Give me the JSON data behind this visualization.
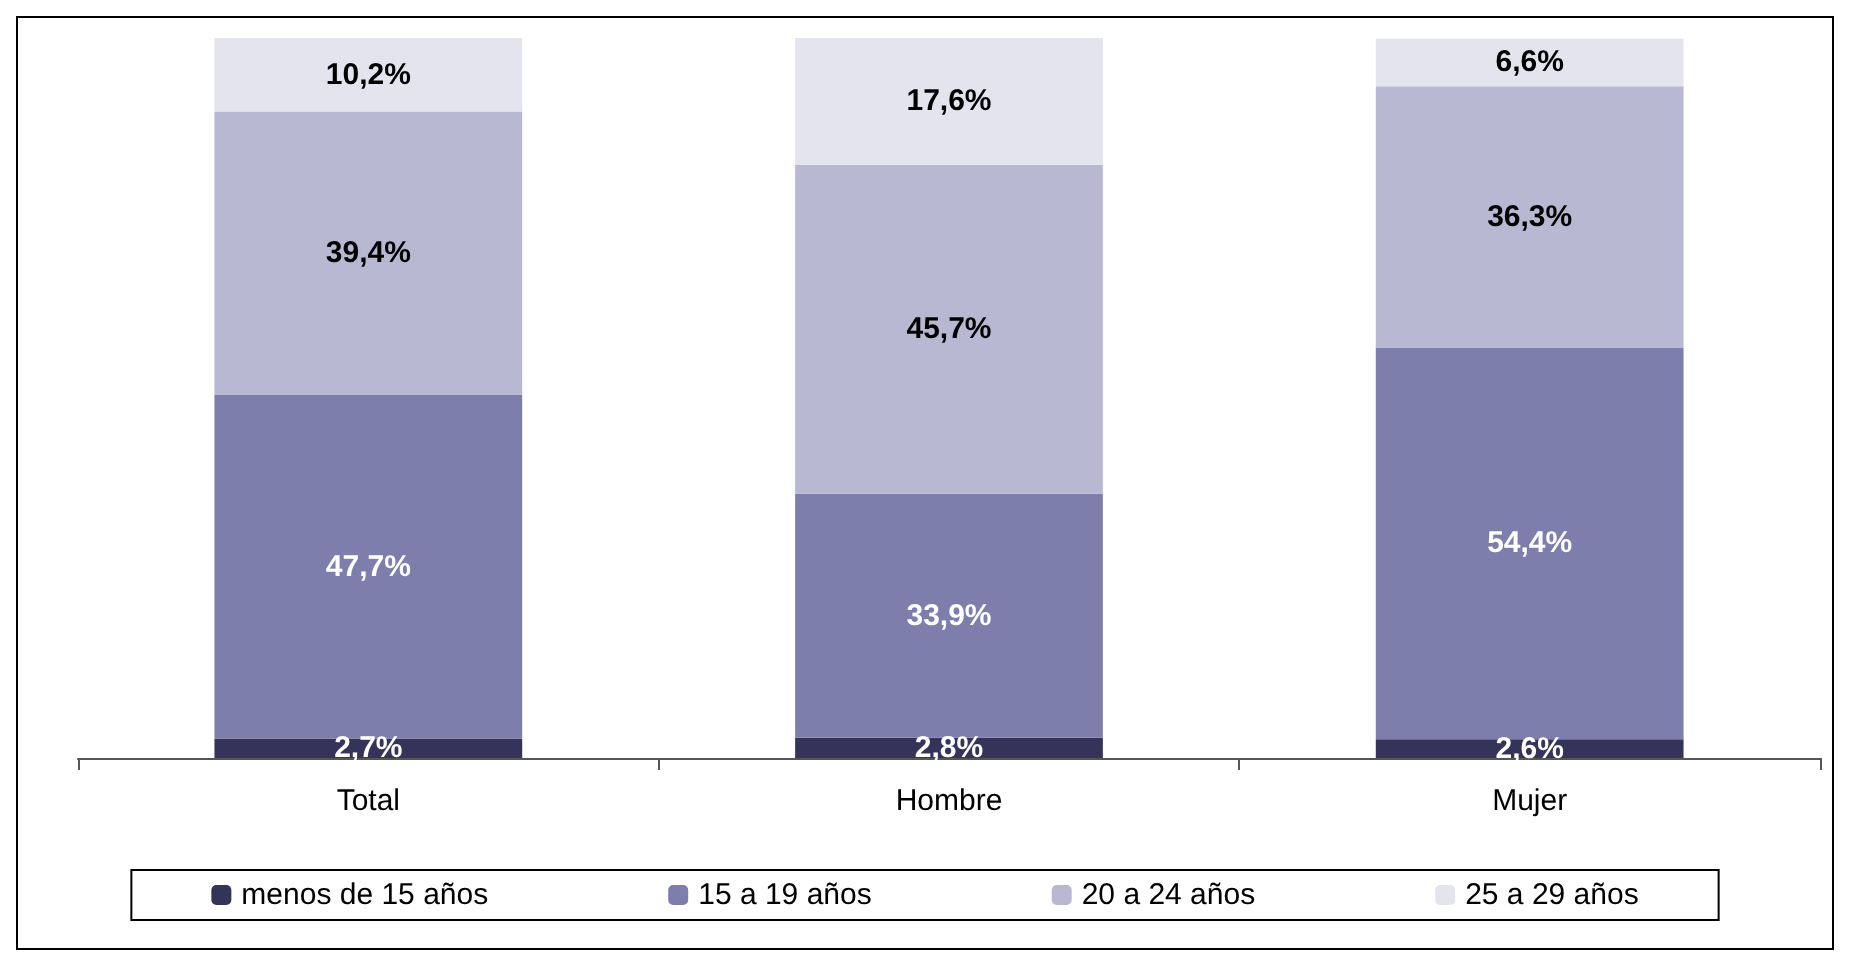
{
  "chart_data": {
    "type": "bar",
    "stacked": true,
    "categories": [
      "Total",
      "Hombre",
      "Mujer"
    ],
    "ylim": [
      0,
      100
    ],
    "tick_labels": "x",
    "legend": "bottom",
    "series": [
      {
        "name": "menos de 15 años",
        "color": "#34345a",
        "values": [
          2.7,
          2.8,
          2.6
        ],
        "value_labels": [
          "2,7%",
          "2,8%",
          "2,6%"
        ]
      },
      {
        "name": "15 a 19 años",
        "color": "#7e7eac",
        "values": [
          47.7,
          33.9,
          54.4
        ],
        "value_labels": [
          "47,7%",
          "33,9%",
          "54,4%"
        ]
      },
      {
        "name": "20 a 24 años",
        "color": "#b8b8d2",
        "values": [
          39.4,
          45.7,
          36.3
        ],
        "value_labels": [
          "39,4%",
          "45,7%",
          "36,3%"
        ]
      },
      {
        "name": "25 a 29 años",
        "color": "#e4e4ee",
        "values": [
          10.2,
          17.6,
          6.6
        ],
        "value_labels": [
          "10,2%",
          "17,6%",
          "6,6%"
        ]
      }
    ]
  }
}
